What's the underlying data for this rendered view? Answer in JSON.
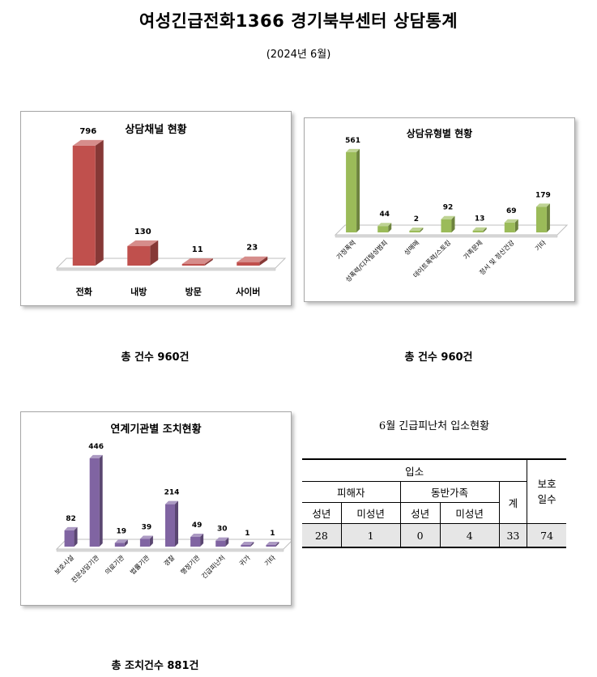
{
  "title": "여성긴급전화1366 경기북부센터 상담통계",
  "subtitle": "(2024년 6월)",
  "colors": {
    "red": "#c0504d",
    "green": "#9bbb59",
    "purple": "#8064a2"
  },
  "chart_data": [
    {
      "id": "channel",
      "type": "bar",
      "title": "상담채널 현황",
      "categories": [
        "전화",
        "내방",
        "방문",
        "사이버"
      ],
      "values": [
        796,
        130,
        11,
        23
      ],
      "ylim": [
        0,
        860
      ],
      "color": "red"
    },
    {
      "id": "type",
      "type": "bar",
      "title": "상담유형별 현황",
      "categories": [
        "가정폭력",
        "성폭력/디지털성범죄",
        "성매매",
        "데이트폭력/스토킹",
        "가족문제",
        "정서 및 정신건강",
        "기타"
      ],
      "values": [
        561,
        44,
        2,
        92,
        13,
        69,
        179
      ],
      "ylim": [
        0,
        600
      ],
      "color": "green"
    },
    {
      "id": "agency",
      "type": "bar",
      "title": "연계기관별 조치현황",
      "categories": [
        "보호시설",
        "전문상담기관",
        "의료기관",
        "법률기관",
        "경찰",
        "행정기관",
        "긴급피난처",
        "귀가",
        "기타"
      ],
      "values": [
        82,
        446,
        19,
        39,
        214,
        49,
        30,
        1,
        1
      ],
      "ylim": [
        0,
        470
      ],
      "color": "purple"
    }
  ],
  "totals": {
    "channel": "총 건수 960건",
    "type": "총 건수 960건",
    "agency": "총 조치건수 881건"
  },
  "shelter_table": {
    "title": "6월 긴급피난처 입소현황",
    "admission": "입소",
    "victim": "피해자",
    "companion": "동반가족",
    "adult": "성년",
    "minor": "미성년",
    "total": "계",
    "protection_days": "보호\n일수",
    "values": [
      "28",
      "1",
      "0",
      "4",
      "33",
      "74"
    ]
  }
}
